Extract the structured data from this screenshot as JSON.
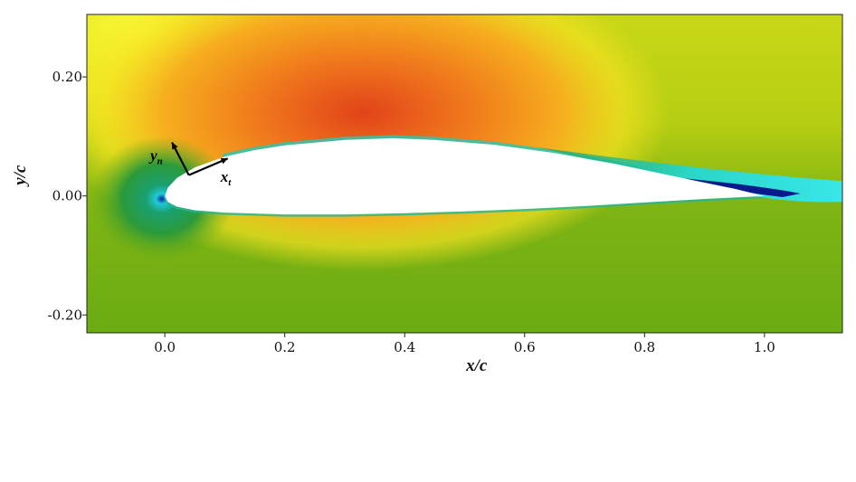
{
  "chart_data": {
    "type": "heatmap",
    "title": "",
    "xlabel": "x/c",
    "ylabel": "y/c",
    "xlim": [
      -0.13,
      1.13
    ],
    "ylim": [
      -0.23,
      0.305
    ],
    "x_ticks": [
      {
        "value": 0.0,
        "label": "0.0"
      },
      {
        "value": 0.2,
        "label": "0.2"
      },
      {
        "value": 0.4,
        "label": "0.4"
      },
      {
        "value": 0.6,
        "label": "0.6"
      },
      {
        "value": 0.8,
        "label": "0.8"
      },
      {
        "value": 1.0,
        "label": "1.0"
      }
    ],
    "y_ticks": [
      {
        "value": 0.2,
        "label": "0.20"
      },
      {
        "value": 0.0,
        "label": "0.00"
      },
      {
        "value": -0.2,
        "label": "-0.20"
      }
    ],
    "grid": false,
    "airfoil_upper": [
      [
        0.0,
        0.0
      ],
      [
        0.005,
        0.014
      ],
      [
        0.02,
        0.03
      ],
      [
        0.05,
        0.048
      ],
      [
        0.1,
        0.066
      ],
      [
        0.15,
        0.077
      ],
      [
        0.2,
        0.085
      ],
      [
        0.3,
        0.094
      ],
      [
        0.38,
        0.097
      ],
      [
        0.45,
        0.094
      ],
      [
        0.55,
        0.086
      ],
      [
        0.65,
        0.072
      ],
      [
        0.75,
        0.054
      ],
      [
        0.85,
        0.033
      ],
      [
        0.95,
        0.012
      ],
      [
        1.0,
        0.0
      ]
    ],
    "airfoil_lower": [
      [
        0.0,
        0.0
      ],
      [
        0.005,
        -0.01
      ],
      [
        0.02,
        -0.018
      ],
      [
        0.05,
        -0.024
      ],
      [
        0.1,
        -0.028
      ],
      [
        0.2,
        -0.031
      ],
      [
        0.3,
        -0.031
      ],
      [
        0.4,
        -0.029
      ],
      [
        0.5,
        -0.026
      ],
      [
        0.6,
        -0.022
      ],
      [
        0.7,
        -0.017
      ],
      [
        0.8,
        -0.011
      ],
      [
        0.9,
        -0.005
      ],
      [
        1.0,
        0.0
      ]
    ],
    "annotations": [
      {
        "text": "y",
        "subscript": "n"
      },
      {
        "text": "x",
        "subscript": "t"
      }
    ],
    "colors": {
      "high_suction": "#e8501a",
      "mid": "#f3b418",
      "freestream": "#a6c40f",
      "stagnation": "#1a8c50",
      "lowest": "#0a1a8c",
      "turbulent_edge": "#3be0e0",
      "airfoil": "#ffffff"
    }
  }
}
